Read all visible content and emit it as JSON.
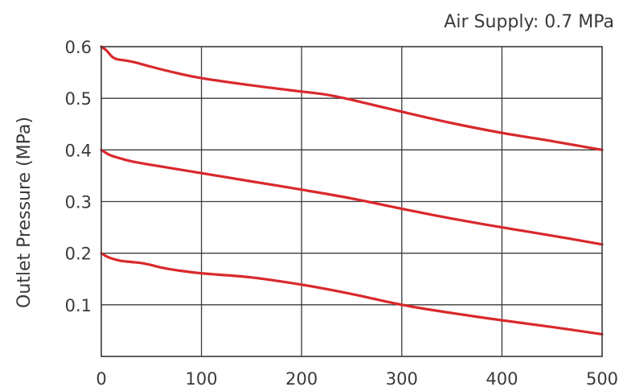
{
  "chart_data": {
    "type": "line",
    "annotation": "Air Supply: 0.7 MPa",
    "xlabel": "",
    "ylabel": "Outlet Pressure (MPa)",
    "xlim": [
      0,
      500
    ],
    "ylim": [
      0,
      0.6
    ],
    "x_ticks": [
      0,
      100,
      200,
      300,
      400,
      500
    ],
    "x_tick_labels": [
      "0",
      "100",
      "200",
      "300",
      "400",
      "500"
    ],
    "y_ticks": [
      0.1,
      0.2,
      0.3,
      0.4,
      0.5,
      0.6
    ],
    "y_tick_labels": [
      "0.1",
      "0.2",
      "0.3",
      "0.4",
      "0.5",
      "0.6"
    ],
    "grid": true,
    "line_color": "#d9282c",
    "series": [
      {
        "x": [
          0,
          5,
          10,
          15,
          25,
          35,
          50,
          75,
          100,
          150,
          200,
          225,
          250,
          300,
          350,
          400,
          450,
          500
        ],
        "values": [
          0.6,
          0.593,
          0.582,
          0.576,
          0.573,
          0.569,
          0.561,
          0.549,
          0.539,
          0.525,
          0.513,
          0.507,
          0.497,
          0.474,
          0.452,
          0.433,
          0.417,
          0.4
        ]
      },
      {
        "x": [
          0,
          5,
          10,
          20,
          30,
          50,
          100,
          150,
          200,
          250,
          300,
          350,
          400,
          450,
          500
        ],
        "values": [
          0.4,
          0.394,
          0.389,
          0.383,
          0.378,
          0.371,
          0.355,
          0.339,
          0.323,
          0.306,
          0.286,
          0.267,
          0.25,
          0.234,
          0.217
        ]
      },
      {
        "x": [
          0,
          5,
          10,
          20,
          30,
          40,
          50,
          60,
          75,
          100,
          150,
          200,
          250,
          300,
          350,
          400,
          450,
          500
        ],
        "values": [
          0.2,
          0.194,
          0.19,
          0.185,
          0.183,
          0.181,
          0.177,
          0.172,
          0.167,
          0.161,
          0.153,
          0.139,
          0.121,
          0.1,
          0.084,
          0.07,
          0.057,
          0.043
        ]
      }
    ]
  }
}
